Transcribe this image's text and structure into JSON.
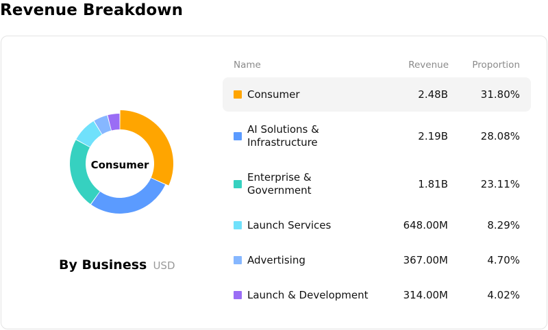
{
  "page": {
    "title": "Revenue Breakdown"
  },
  "chart": {
    "center_label": "Consumer",
    "caption_title": "By Business",
    "caption_unit": "USD"
  },
  "table": {
    "headers": {
      "name": "Name",
      "revenue": "Revenue",
      "proportion": "Proportion"
    },
    "rows": [
      {
        "name_lines": [
          "Consumer"
        ],
        "revenue": "2.48B",
        "proportion": "31.80%",
        "color": "#FFA500",
        "highlight": true
      },
      {
        "name_lines": [
          "AI Solutions &",
          "Infrastructure"
        ],
        "revenue": "2.19B",
        "proportion": "28.08%",
        "color": "#5B9BFF",
        "highlight": false
      },
      {
        "name_lines": [
          "Enterprise &",
          "Government"
        ],
        "revenue": "1.81B",
        "proportion": "23.11%",
        "color": "#36D1C0",
        "highlight": false
      },
      {
        "name_lines": [
          "Launch Services"
        ],
        "revenue": "648.00M",
        "proportion": "8.29%",
        "color": "#70E1FB",
        "highlight": false
      },
      {
        "name_lines": [
          "Advertising"
        ],
        "revenue": "367.00M",
        "proportion": "4.70%",
        "color": "#86B7FF",
        "highlight": false
      },
      {
        "name_lines": [
          "Launch & Development"
        ],
        "revenue": "314.00M",
        "proportion": "4.02%",
        "color": "#9A6DF5",
        "highlight": false
      }
    ]
  },
  "chart_data": {
    "type": "pie",
    "donut": true,
    "highlighted_slice": "Consumer",
    "categories": [
      "Consumer",
      "AI Solutions & Infrastructure",
      "Enterprise & Government",
      "Launch Services",
      "Advertising",
      "Launch & Development"
    ],
    "values": [
      31.8,
      28.08,
      23.11,
      8.29,
      4.7,
      4.02
    ],
    "colors": [
      "#FFA500",
      "#5B9BFF",
      "#36D1C0",
      "#70E1FB",
      "#86B7FF",
      "#9A6DF5"
    ]
  }
}
